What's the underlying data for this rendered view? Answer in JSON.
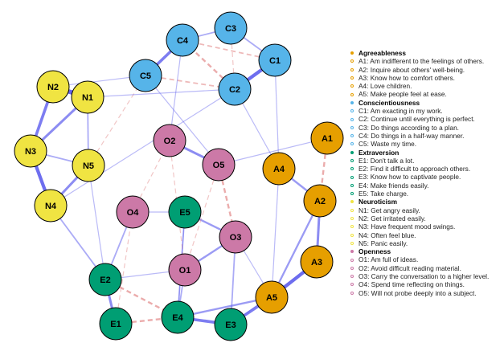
{
  "groups": [
    {
      "name": "Agreeableness",
      "color": "#E69F00",
      "items": [
        {
          "id": "A1",
          "text": "A1: Am indifferent to the feelings of others."
        },
        {
          "id": "A2",
          "text": "A2: Inquire about others' well-being."
        },
        {
          "id": "A3",
          "text": "A3: Know how to comfort others."
        },
        {
          "id": "A4",
          "text": "A4: Love children."
        },
        {
          "id": "A5",
          "text": "A5: Make people feel at ease."
        }
      ]
    },
    {
      "name": "Conscientiousness",
      "color": "#56B4E9",
      "items": [
        {
          "id": "C1",
          "text": "C1: Am exacting in my work."
        },
        {
          "id": "C2",
          "text": "C2: Continue until everything is perfect."
        },
        {
          "id": "C3",
          "text": "C3: Do things according to a plan."
        },
        {
          "id": "C4",
          "text": "C4: Do things in a half-way manner."
        },
        {
          "id": "C5",
          "text": "C5: Waste my time."
        }
      ]
    },
    {
      "name": "Extraversion",
      "color": "#009E73",
      "items": [
        {
          "id": "E1",
          "text": "E1: Don't talk a lot."
        },
        {
          "id": "E2",
          "text": "E2: Find it difficult to approach others."
        },
        {
          "id": "E3",
          "text": "E3: Know how to captivate people."
        },
        {
          "id": "E4",
          "text": "E4: Make friends easily."
        },
        {
          "id": "E5",
          "text": "E5: Take charge."
        }
      ]
    },
    {
      "name": "Neuroticism",
      "color": "#F0E442",
      "items": [
        {
          "id": "N1",
          "text": "N1: Get angry easily."
        },
        {
          "id": "N2",
          "text": "N2: Get irritated easily."
        },
        {
          "id": "N3",
          "text": "N3: Have frequent mood swings."
        },
        {
          "id": "N4",
          "text": "N4: Often feel blue."
        },
        {
          "id": "N5",
          "text": "N5: Panic easily."
        }
      ]
    },
    {
      "name": "Openness",
      "color": "#CC79A7",
      "items": [
        {
          "id": "O1",
          "text": "O1: Am full of ideas."
        },
        {
          "id": "O2",
          "text": "O2: Avoid difficult reading material."
        },
        {
          "id": "O3",
          "text": "O3: Carry the conversation to a higher level."
        },
        {
          "id": "O4",
          "text": "O4: Spend time reflecting on things."
        },
        {
          "id": "O5",
          "text": "O5: Will not probe deeply into a subject."
        }
      ]
    }
  ],
  "edge_colors": {
    "positive": "#6666EE",
    "negative": "#E08080"
  },
  "edges": [
    [
      "N1",
      "N2",
      0.9
    ],
    [
      "N2",
      "N3",
      0.6
    ],
    [
      "N1",
      "N3",
      0.5
    ],
    [
      "N3",
      "N4",
      0.7
    ],
    [
      "N4",
      "N5",
      0.5
    ],
    [
      "N1",
      "N5",
      0.3
    ],
    [
      "N3",
      "N5",
      0.3
    ],
    [
      "C4",
      "C5",
      0.6
    ],
    [
      "C1",
      "C2",
      0.7
    ],
    [
      "C3",
      "C1",
      0.3
    ],
    [
      "C3",
      "C4",
      0.3
    ],
    [
      "C2",
      "C4",
      -0.4
    ],
    [
      "C5",
      "C2",
      -0.3
    ],
    [
      "C3",
      "C2",
      -0.2
    ],
    [
      "C1",
      "C4",
      -0.3
    ],
    [
      "A1",
      "A2",
      -0.4
    ],
    [
      "A2",
      "A3",
      0.5
    ],
    [
      "A3",
      "A5",
      0.7
    ],
    [
      "A2",
      "A4",
      0.4
    ],
    [
      "A2",
      "A5",
      0.4
    ],
    [
      "A4",
      "A5",
      0.2
    ],
    [
      "E1",
      "E2",
      0.5
    ],
    [
      "E1",
      "E4",
      -0.4
    ],
    [
      "E2",
      "E4",
      -0.4
    ],
    [
      "E3",
      "E4",
      0.6
    ],
    [
      "E3",
      "A5",
      0.6
    ],
    [
      "E4",
      "A5",
      0.4
    ],
    [
      "E4",
      "O1",
      0.3
    ],
    [
      "E3",
      "O3",
      0.3
    ],
    [
      "E5",
      "O3",
      0.4
    ],
    [
      "E2",
      "O4",
      0.3
    ],
    [
      "E5",
      "E4",
      0.3
    ],
    [
      "O2",
      "O5",
      0.5
    ],
    [
      "O5",
      "O3",
      -0.4
    ],
    [
      "O1",
      "O3",
      0.4
    ],
    [
      "O4",
      "O2",
      -0.2
    ],
    [
      "O4",
      "E5",
      0.2
    ],
    [
      "O2",
      "O1",
      -0.2
    ],
    [
      "O5",
      "O1",
      -0.2
    ],
    [
      "N5",
      "C5",
      -0.2
    ],
    [
      "N5",
      "E2",
      0.2
    ],
    [
      "N4",
      "E2",
      0.3
    ],
    [
      "N1",
      "C2",
      0.2
    ],
    [
      "C5",
      "O5",
      0.2
    ],
    [
      "A1",
      "O5",
      0.2
    ],
    [
      "C2",
      "A4",
      0.2
    ],
    [
      "E3",
      "A3",
      0.2
    ],
    [
      "E2",
      "O1",
      0.2
    ],
    [
      "N2",
      "C5",
      0.2
    ],
    [
      "C4",
      "O2",
      0.2
    ],
    [
      "O3",
      "A5",
      0.2
    ],
    [
      "E1",
      "O4",
      -0.2
    ],
    [
      "C1",
      "A4",
      0.2
    ],
    [
      "N4",
      "C2",
      0.2
    ],
    [
      "E4",
      "E5",
      0.2
    ]
  ]
}
